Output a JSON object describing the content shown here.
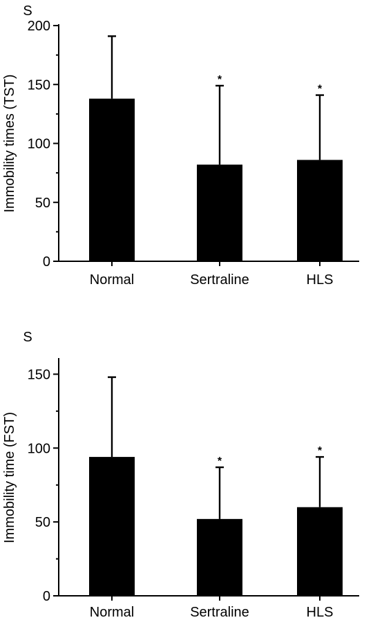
{
  "colors": {
    "bar_fill": "#000000",
    "axis": "#000000",
    "background": "#ffffff"
  },
  "chart_data": [
    {
      "type": "bar",
      "unit_label": "S",
      "ylabel": "Immobility times (TST)",
      "xlabel": "",
      "categories": [
        "Normal",
        "Sertraline",
        "HLS"
      ],
      "values": [
        138,
        82,
        86
      ],
      "error_upper": [
        191,
        149,
        141
      ],
      "annotations": [
        "",
        "*",
        "*"
      ],
      "ylim": [
        0,
        200
      ],
      "yticks": [
        0,
        50,
        100,
        150,
        200
      ],
      "minor_tick_step": 25,
      "grid": false,
      "legend": "none"
    },
    {
      "type": "bar",
      "unit_label": "S",
      "ylabel": "Immobility time (FST)",
      "xlabel": "",
      "categories": [
        "Normal",
        "Sertraline",
        "HLS"
      ],
      "values": [
        94,
        52,
        60
      ],
      "error_upper": [
        148,
        87,
        94
      ],
      "annotations": [
        "",
        "*",
        "*"
      ],
      "ylim": [
        0,
        160
      ],
      "yticks": [
        0,
        50,
        100,
        150
      ],
      "minor_tick_step": 25,
      "grid": false,
      "legend": "none"
    }
  ]
}
